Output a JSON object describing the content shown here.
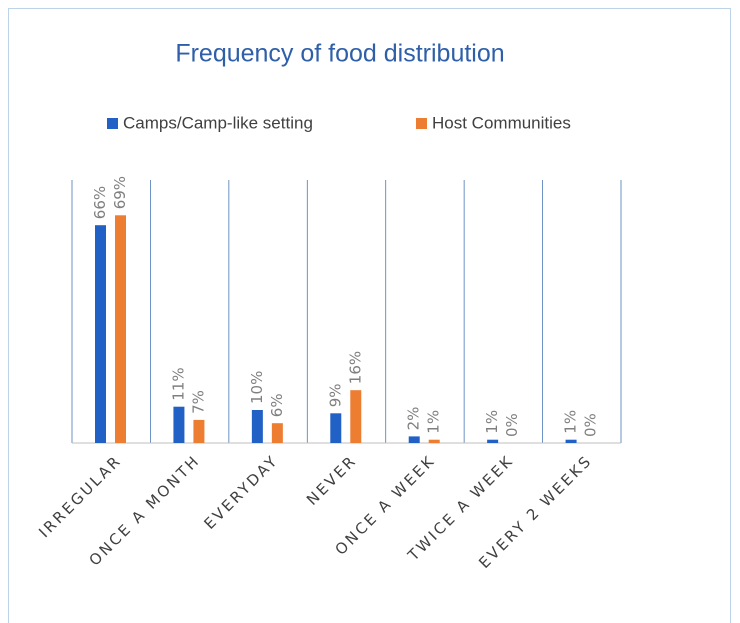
{
  "chart_data": {
    "type": "bar",
    "title": "Frequency of food distribution",
    "categories": [
      "IRREGULAR",
      "ONCE A MONTH",
      "EVERYDAY",
      "NEVER",
      "ONCE A WEEK",
      "TWICE A WEEK",
      "EVERY 2 WEEKS"
    ],
    "series": [
      {
        "name": "Camps/Camp-like setting",
        "color": "#2160c4",
        "values": [
          66,
          11,
          10,
          9,
          2,
          1,
          1
        ],
        "value_labels": [
          "66%",
          "11%",
          "10%",
          "9%",
          "2%",
          "1%",
          "1%"
        ]
      },
      {
        "name": "Host Communities",
        "color": "#ed7d31",
        "values": [
          69,
          7,
          6,
          16,
          1,
          0,
          0
        ],
        "value_labels": [
          "69%",
          "7%",
          "6%",
          "16%",
          "1%",
          "0%",
          "0%"
        ]
      }
    ],
    "legend": "top"
  }
}
